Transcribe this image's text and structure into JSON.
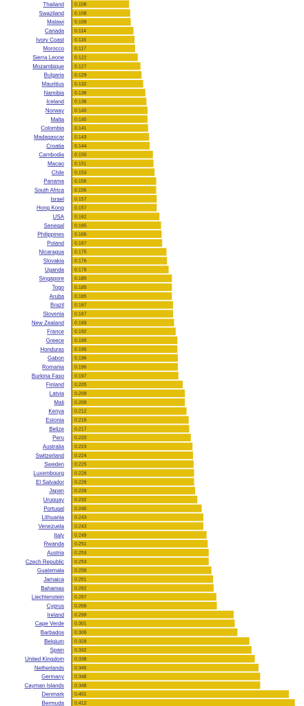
{
  "chart_data": {
    "type": "bar",
    "orientation": "horizontal",
    "bar_color": "#e4bf0c",
    "label_color": "#1f1f9e",
    "value_color": "#333333",
    "axis_color": "#333333",
    "xlim": [
      0,
      0.42
    ],
    "data_labels": [
      "0.106",
      "0.108",
      "0.109",
      "0.114",
      "0.116",
      "0.117",
      "0.122",
      "0.127",
      "0.129",
      "0.132",
      "0.136",
      "0.138",
      "0.140",
      "0.140",
      "0.141",
      "0.143",
      "0.144",
      "0.150",
      "0.151",
      "0.153",
      "0.156",
      "0.156",
      "0.157",
      "0.157",
      "0.162",
      "0.165",
      "0.166",
      "0.167",
      "0.175",
      "0.176",
      "0.179",
      "0.185",
      "0.185",
      "0.185",
      "0.187",
      "0.187",
      "0.189",
      "0.192",
      "0.195",
      "0.195",
      "0.196",
      "0.196",
      "0.197",
      "0.205",
      "0.209",
      "0.209",
      "0.212",
      "0.216",
      "0.217",
      "0.220",
      "0.223",
      "0.224",
      "0.225",
      "0.226",
      "0.226",
      "0.228",
      "0.232",
      "0.240",
      "0.243",
      "0.243",
      "0.249",
      "0.251",
      "0.253",
      "0.253",
      "0.258",
      "0.261",
      "0.262",
      "0.267",
      "0.268",
      "0.299",
      "0.301",
      "0.306",
      "0.328",
      "0.332",
      "0.338",
      "0.345",
      "0.348",
      "0.348",
      "0.401",
      "0.412"
    ],
    "categories": [
      "Thailand",
      "Swaziland",
      "Malawi",
      "Canada",
      "Ivory Coast",
      "Morocco",
      "Sierra Leone",
      "Mozambique",
      "Bulgaria",
      "Mauritius",
      "Namibia",
      "Iceland",
      "Norway",
      "Malta",
      "Colombia",
      "Madagascar",
      "Croatia",
      "Cambodia",
      "Macao",
      "Chile",
      "Panama",
      "South Africa",
      "Israel",
      "Hong Kong",
      "USA",
      "Senegal",
      "Philippines",
      "Poland",
      "Nicaragua",
      "Slovakia",
      "Uganda",
      "Singapore",
      "Togo",
      "Aruba",
      "Brazil",
      "Slovenia",
      "New Zealand",
      "France",
      "Greece",
      "Honduras",
      "Gabon",
      "Romania",
      "Burkina Faso",
      "Finland",
      "Latvia",
      "Mali",
      "Kenya",
      "Estonia",
      "Belize",
      "Peru",
      "Australia",
      "Switzerland",
      "Sweden",
      "Luxembourg",
      "El Salvador",
      "Japan",
      "Uruguay",
      "Portugal",
      "Lithuania",
      "Venezuela",
      "Italy",
      "Rwanda",
      "Austria",
      "Czech Republic",
      "Guatemala",
      "Jamaica",
      "Bahamas",
      "Liechtenstein",
      "Cyprus",
      "Ireland",
      "Cape Verde",
      "Barbados",
      "Belgium",
      "Spain",
      "United Kingdom",
      "Netherlands",
      "Germany",
      "Cayman Islands",
      "Denmark",
      "Bermuda"
    ],
    "values": [
      0.106,
      0.108,
      0.109,
      0.114,
      0.116,
      0.117,
      0.122,
      0.127,
      0.129,
      0.132,
      0.136,
      0.138,
      0.14,
      0.14,
      0.141,
      0.143,
      0.144,
      0.15,
      0.151,
      0.153,
      0.156,
      0.156,
      0.157,
      0.157,
      0.162,
      0.165,
      0.166,
      0.167,
      0.175,
      0.176,
      0.179,
      0.185,
      0.185,
      0.185,
      0.187,
      0.187,
      0.189,
      0.192,
      0.195,
      0.195,
      0.196,
      0.196,
      0.197,
      0.205,
      0.209,
      0.209,
      0.212,
      0.216,
      0.217,
      0.22,
      0.223,
      0.224,
      0.225,
      0.226,
      0.226,
      0.228,
      0.232,
      0.24,
      0.243,
      0.243,
      0.249,
      0.251,
      0.253,
      0.253,
      0.258,
      0.261,
      0.262,
      0.267,
      0.268,
      0.299,
      0.301,
      0.306,
      0.328,
      0.332,
      0.338,
      0.345,
      0.348,
      0.348,
      0.401,
      0.412
    ]
  }
}
